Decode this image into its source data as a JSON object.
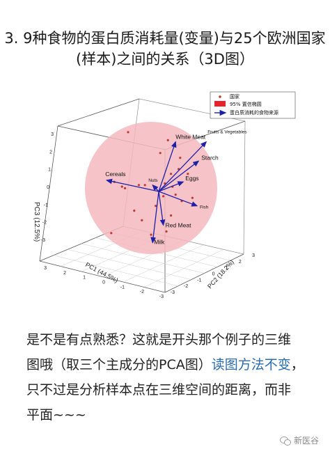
{
  "title": {
    "line1": "3. 9种食物的蛋白质消耗量(变量)与25个欧洲国家",
    "line2": "(样本)之间的关系（3D图）"
  },
  "caption": {
    "line1": "是不是有点熟悉？这就是开头那个例子的三维",
    "line2_a": "图哦（取三个主成分的PCA图）",
    "line2_link": "读图方法不变",
    "line2_b": "，",
    "line3": "只不过是分析样本点在三维空间的距离，而非",
    "line4": "平面~~~"
  },
  "footer": {
    "brand": "新医谷",
    "icon": "wechat-icon"
  },
  "colors": {
    "ellipse": "#f3b9be",
    "vector": "#1f1fa8",
    "point": "#c0392b",
    "link": "#2a6bb0"
  },
  "chart_data": {
    "type": "scatter",
    "projection": "3d",
    "legend": {
      "position": "top-right",
      "items": [
        "国家",
        "95% 置信椭圆",
        "蛋白质消耗的食物来源"
      ]
    },
    "axes": {
      "x": {
        "label": "PC1 (44.5%)",
        "ticks": [
          "3",
          "2",
          "1",
          "0",
          "-1",
          "-2",
          "-3"
        ]
      },
      "y": {
        "label": "PC2 (18.2%)",
        "ticks": [
          "-3",
          "-2",
          "-1",
          "0",
          "1",
          "2",
          "3"
        ]
      },
      "z": {
        "label": "PC3 (12.5%)",
        "ticks": [
          "3",
          "2",
          "1",
          "0",
          "-1",
          "-2",
          "-3"
        ]
      }
    },
    "vectors": [
      {
        "name": "White Meat",
        "end": [
          0.55,
          1.55
        ]
      },
      {
        "name": "Fruits & Vegetables",
        "end": [
          1.55,
          1.55
        ]
      },
      {
        "name": "Starch",
        "end": [
          1.3,
          0.95
        ]
      },
      {
        "name": "Eggs",
        "end": [
          0.8,
          0.3
        ]
      },
      {
        "name": "Fish",
        "end": [
          1.25,
          -0.45
        ]
      },
      {
        "name": "Red Meat",
        "end": [
          0.15,
          -1.05
        ]
      },
      {
        "name": "Milk",
        "end": [
          -0.2,
          -1.6
        ]
      },
      {
        "name": "Cereals",
        "end": [
          -1.7,
          0.35
        ]
      },
      {
        "name": "Nuts",
        "end": [
          -0.2,
          0.2
        ]
      }
    ],
    "points": [
      [
        -1.0,
        1.85
      ],
      [
        0.3,
        1.6
      ],
      [
        0.7,
        1.05
      ],
      [
        0.05,
        1.2
      ],
      [
        0.4,
        0.55
      ],
      [
        -1.1,
        0.1
      ],
      [
        -1.45,
        0.3
      ],
      [
        -0.45,
        0.2
      ],
      [
        -0.65,
        0.2
      ],
      [
        0.15,
        -0.15
      ],
      [
        0.75,
        -0.3
      ],
      [
        0.65,
        0.7
      ],
      [
        -0.1,
        -0.45
      ],
      [
        -0.55,
        -0.9
      ],
      [
        0.4,
        -0.75
      ],
      [
        1.1,
        -0.2
      ],
      [
        -1.55,
        -1.3
      ],
      [
        0.25,
        -1.25
      ],
      [
        -0.25,
        -1.35
      ],
      [
        0.95,
        0.55
      ],
      [
        0.55,
        -0.1
      ],
      [
        -1.2,
        0.15
      ],
      [
        0.2,
        0.25
      ],
      [
        -0.8,
        -0.6
      ],
      [
        0.45,
        0.15
      ]
    ]
  }
}
